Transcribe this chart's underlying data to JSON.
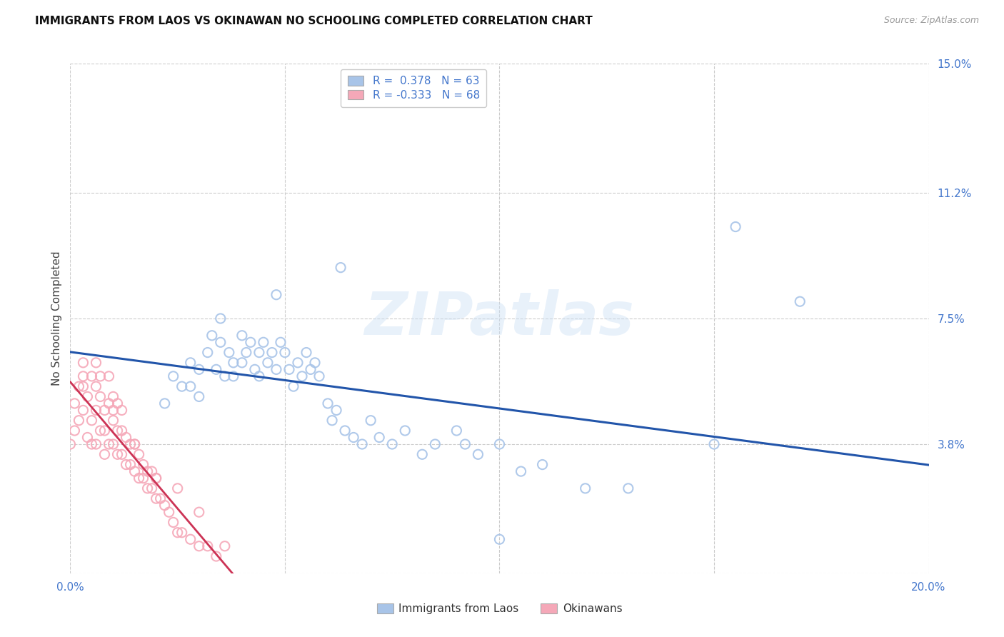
{
  "title": "IMMIGRANTS FROM LAOS VS OKINAWAN NO SCHOOLING COMPLETED CORRELATION CHART",
  "source": "Source: ZipAtlas.com",
  "ylabel": "No Schooling Completed",
  "watermark": "ZIPatlas",
  "xlim": [
    0.0,
    0.2
  ],
  "ylim": [
    0.0,
    0.15
  ],
  "xtick_vals": [
    0.0,
    0.05,
    0.1,
    0.15,
    0.2
  ],
  "xticklabels": [
    "0.0%",
    "",
    "",
    "",
    "20.0%"
  ],
  "ytick_vals": [
    0.0,
    0.038,
    0.075,
    0.112,
    0.15
  ],
  "yticklabels_right": [
    "",
    "3.8%",
    "7.5%",
    "11.2%",
    "15.0%"
  ],
  "blue_R": "0.378",
  "blue_N": "63",
  "pink_R": "-0.333",
  "pink_N": "68",
  "blue_color": "#a8c4e8",
  "pink_color": "#f5a8b8",
  "blue_line_color": "#2255aa",
  "pink_line_color": "#cc3355",
  "legend_label_blue": "Immigrants from Laos",
  "legend_label_pink": "Okinawans",
  "blue_scatter_x": [
    0.022,
    0.024,
    0.026,
    0.028,
    0.028,
    0.03,
    0.03,
    0.032,
    0.033,
    0.034,
    0.035,
    0.035,
    0.036,
    0.037,
    0.038,
    0.038,
    0.04,
    0.04,
    0.041,
    0.042,
    0.043,
    0.044,
    0.044,
    0.045,
    0.046,
    0.047,
    0.048,
    0.049,
    0.05,
    0.051,
    0.052,
    0.053,
    0.054,
    0.055,
    0.056,
    0.057,
    0.058,
    0.06,
    0.061,
    0.062,
    0.064,
    0.066,
    0.068,
    0.07,
    0.072,
    0.075,
    0.078,
    0.082,
    0.085,
    0.09,
    0.095,
    0.1,
    0.105,
    0.11,
    0.12,
    0.155,
    0.17,
    0.1,
    0.13,
    0.15,
    0.048,
    0.063,
    0.092
  ],
  "blue_scatter_y": [
    0.05,
    0.058,
    0.055,
    0.055,
    0.062,
    0.06,
    0.052,
    0.065,
    0.07,
    0.06,
    0.068,
    0.075,
    0.058,
    0.065,
    0.058,
    0.062,
    0.07,
    0.062,
    0.065,
    0.068,
    0.06,
    0.058,
    0.065,
    0.068,
    0.062,
    0.065,
    0.06,
    0.068,
    0.065,
    0.06,
    0.055,
    0.062,
    0.058,
    0.065,
    0.06,
    0.062,
    0.058,
    0.05,
    0.045,
    0.048,
    0.042,
    0.04,
    0.038,
    0.045,
    0.04,
    0.038,
    0.042,
    0.035,
    0.038,
    0.042,
    0.035,
    0.038,
    0.03,
    0.032,
    0.025,
    0.102,
    0.08,
    0.01,
    0.025,
    0.038,
    0.082,
    0.09,
    0.038
  ],
  "pink_scatter_x": [
    0.0,
    0.001,
    0.001,
    0.002,
    0.002,
    0.003,
    0.003,
    0.003,
    0.004,
    0.004,
    0.005,
    0.005,
    0.005,
    0.006,
    0.006,
    0.006,
    0.007,
    0.007,
    0.007,
    0.008,
    0.008,
    0.008,
    0.009,
    0.009,
    0.009,
    0.01,
    0.01,
    0.01,
    0.011,
    0.011,
    0.011,
    0.012,
    0.012,
    0.012,
    0.013,
    0.013,
    0.014,
    0.014,
    0.015,
    0.015,
    0.016,
    0.016,
    0.017,
    0.017,
    0.018,
    0.018,
    0.019,
    0.019,
    0.02,
    0.02,
    0.021,
    0.022,
    0.023,
    0.024,
    0.025,
    0.026,
    0.028,
    0.03,
    0.032,
    0.034,
    0.003,
    0.006,
    0.01,
    0.015,
    0.02,
    0.025,
    0.03,
    0.036
  ],
  "pink_scatter_y": [
    0.038,
    0.042,
    0.05,
    0.045,
    0.055,
    0.048,
    0.055,
    0.062,
    0.04,
    0.052,
    0.045,
    0.058,
    0.038,
    0.048,
    0.055,
    0.038,
    0.042,
    0.052,
    0.058,
    0.035,
    0.048,
    0.042,
    0.038,
    0.05,
    0.058,
    0.038,
    0.045,
    0.052,
    0.035,
    0.042,
    0.05,
    0.035,
    0.042,
    0.048,
    0.032,
    0.04,
    0.032,
    0.038,
    0.03,
    0.038,
    0.028,
    0.035,
    0.028,
    0.032,
    0.025,
    0.03,
    0.025,
    0.03,
    0.022,
    0.028,
    0.022,
    0.02,
    0.018,
    0.015,
    0.012,
    0.012,
    0.01,
    0.008,
    0.008,
    0.005,
    0.058,
    0.062,
    0.048,
    0.038,
    0.028,
    0.025,
    0.018,
    0.008
  ]
}
